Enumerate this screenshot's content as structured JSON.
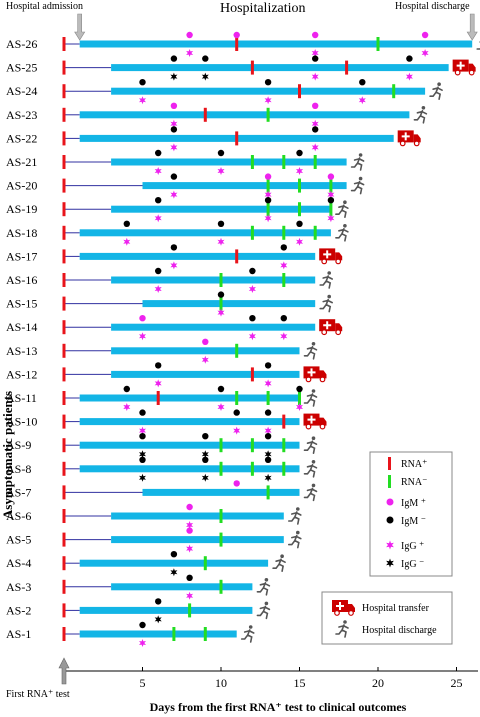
{
  "chart_data": {
    "type": "timeline",
    "xlabel": "Days from the first RNA⁺ test to clinical outcomes",
    "ylabel": "Asymptomatic patients",
    "xlim": [
      0,
      27
    ],
    "x_ticks": [
      5,
      10,
      15,
      20,
      25
    ],
    "annotations": {
      "top_left": "Hospital admission",
      "top_center": "Hospitalization",
      "top_right": "Hospital discharge",
      "bottom_left": "First RNA⁺ test"
    },
    "legend": {
      "placement": "bottom-right",
      "items": [
        {
          "key": "rna_pos",
          "label": "RNA⁺",
          "color": "#e8141b"
        },
        {
          "key": "rna_neg",
          "label": "RNA⁻",
          "color": "#22dd22"
        },
        {
          "key": "igm_pos",
          "label": "IgM ⁺",
          "color": "#ee22ee"
        },
        {
          "key": "igm_neg",
          "label": "IgM ⁻",
          "color": "#000000"
        },
        {
          "key": "igg_pos",
          "label": "IgG ⁺",
          "color": "#ee22ee"
        },
        {
          "key": "igg_neg",
          "label": "IgG ⁻",
          "color": "#000000"
        },
        {
          "key": "transfer",
          "label": "Hospital transfer",
          "color": "#cc0000"
        },
        {
          "key": "discharge",
          "label": "Hospital discharge",
          "color": "#555555"
        }
      ]
    },
    "colors": {
      "hospitalization": "#13b5e6",
      "pre_admission": "#3030a0"
    },
    "patients": [
      {
        "id": "AS-26",
        "admit": 1,
        "end": 26,
        "outcome": "discharge",
        "rna_pos": [
          11
        ],
        "rna_neg": [
          20
        ],
        "igm": [
          [
            8,
            "+"
          ],
          [
            11,
            "+"
          ],
          [
            16,
            "+"
          ],
          [
            23,
            "+"
          ]
        ],
        "igg": [
          [
            8,
            "+"
          ],
          [
            16,
            "+"
          ],
          [
            23,
            "+"
          ]
        ]
      },
      {
        "id": "AS-25",
        "admit": 3,
        "end": 24.5,
        "outcome": "transfer",
        "rna_pos": [
          12,
          18
        ],
        "rna_neg": [],
        "igm": [
          [
            7,
            "-"
          ],
          [
            9,
            "-"
          ],
          [
            16,
            "-"
          ],
          [
            22,
            "-"
          ]
        ],
        "igg": [
          [
            7,
            "-"
          ],
          [
            9,
            "-"
          ],
          [
            16,
            "+"
          ],
          [
            22,
            "+"
          ]
        ]
      },
      {
        "id": "AS-24",
        "admit": 3,
        "end": 23,
        "outcome": "discharge",
        "rna_pos": [
          15
        ],
        "rna_neg": [
          21
        ],
        "igm": [
          [
            5,
            "-"
          ],
          [
            13,
            "-"
          ],
          [
            19,
            "-"
          ]
        ],
        "igg": [
          [
            5,
            "+"
          ],
          [
            13,
            "+"
          ],
          [
            19,
            "+"
          ]
        ]
      },
      {
        "id": "AS-23",
        "admit": 1,
        "end": 22,
        "outcome": "discharge",
        "rna_pos": [
          9
        ],
        "rna_neg": [
          13
        ],
        "igm": [
          [
            7,
            "+"
          ],
          [
            16,
            "+"
          ]
        ],
        "igg": [
          [
            7,
            "+"
          ],
          [
            16,
            "+"
          ]
        ]
      },
      {
        "id": "AS-22",
        "admit": 1,
        "end": 21,
        "outcome": "transfer",
        "rna_pos": [
          11
        ],
        "rna_neg": [],
        "igm": [
          [
            7,
            "-"
          ],
          [
            16,
            "-"
          ]
        ],
        "igg": [
          [
            7,
            "+"
          ],
          [
            16,
            "+"
          ]
        ]
      },
      {
        "id": "AS-21",
        "admit": 3,
        "end": 18,
        "outcome": "discharge",
        "rna_pos": [],
        "rna_neg": [
          12,
          14,
          16
        ],
        "igm": [
          [
            6,
            "-"
          ],
          [
            10,
            "-"
          ],
          [
            15,
            "-"
          ]
        ],
        "igg": [
          [
            6,
            "+"
          ],
          [
            10,
            "+"
          ],
          [
            15,
            "+"
          ]
        ]
      },
      {
        "id": "AS-20",
        "admit": 5,
        "end": 18,
        "outcome": "discharge",
        "rna_pos": [],
        "rna_neg": [
          13,
          15,
          17
        ],
        "igm": [
          [
            7,
            "-"
          ],
          [
            13,
            "+"
          ],
          [
            17,
            "+"
          ]
        ],
        "igg": [
          [
            7,
            "+"
          ],
          [
            13,
            "+"
          ],
          [
            17,
            "+"
          ]
        ]
      },
      {
        "id": "AS-19",
        "admit": 3,
        "end": 17,
        "outcome": "discharge",
        "rna_pos": [],
        "rna_neg": [
          13,
          15,
          17
        ],
        "igm": [
          [
            6,
            "-"
          ],
          [
            13,
            "-"
          ],
          [
            17,
            "-"
          ]
        ],
        "igg": [
          [
            6,
            "+"
          ],
          [
            13,
            "+"
          ],
          [
            17,
            "+"
          ]
        ]
      },
      {
        "id": "AS-18",
        "admit": 1,
        "end": 17,
        "outcome": "discharge",
        "rna_pos": [],
        "rna_neg": [
          12,
          14,
          16
        ],
        "igm": [
          [
            4,
            "-"
          ],
          [
            10,
            "-"
          ],
          [
            15,
            "-"
          ]
        ],
        "igg": [
          [
            4,
            "+"
          ],
          [
            10,
            "+"
          ],
          [
            15,
            "+"
          ]
        ]
      },
      {
        "id": "AS-17",
        "admit": 1,
        "end": 16,
        "outcome": "transfer",
        "rna_pos": [
          11
        ],
        "rna_neg": [],
        "igm": [
          [
            7,
            "-"
          ],
          [
            14,
            "-"
          ]
        ],
        "igg": [
          [
            7,
            "+"
          ],
          [
            14,
            "+"
          ]
        ]
      },
      {
        "id": "AS-16",
        "admit": 3,
        "end": 16,
        "outcome": "discharge",
        "rna_pos": [],
        "rna_neg": [
          10,
          14
        ],
        "igm": [
          [
            6,
            "-"
          ],
          [
            12,
            "-"
          ]
        ],
        "igg": [
          [
            6,
            "+"
          ],
          [
            12,
            "+"
          ]
        ]
      },
      {
        "id": "AS-15",
        "admit": 5,
        "end": 16,
        "outcome": "discharge",
        "rna_pos": [],
        "rna_neg": [
          10
        ],
        "igm": [
          [
            10,
            "-"
          ]
        ],
        "igg": [
          [
            10,
            "+"
          ]
        ]
      },
      {
        "id": "AS-14",
        "admit": 3,
        "end": 16,
        "outcome": "transfer",
        "rna_pos": [],
        "rna_neg": [],
        "igm": [
          [
            5,
            "+"
          ],
          [
            12,
            "-"
          ],
          [
            14,
            "-"
          ]
        ],
        "igg": [
          [
            5,
            "+"
          ],
          [
            12,
            "+"
          ],
          [
            14,
            "+"
          ]
        ]
      },
      {
        "id": "AS-13",
        "admit": 3,
        "end": 15,
        "outcome": "discharge",
        "rna_pos": [],
        "rna_neg": [
          11
        ],
        "igm": [
          [
            9,
            "+"
          ]
        ],
        "igg": [
          [
            9,
            "+"
          ]
        ]
      },
      {
        "id": "AS-12",
        "admit": 3,
        "end": 15,
        "outcome": "transfer",
        "rna_pos": [
          12
        ],
        "rna_neg": [],
        "igm": [
          [
            6,
            "-"
          ],
          [
            13,
            "-"
          ]
        ],
        "igg": [
          [
            6,
            "+"
          ],
          [
            13,
            "+"
          ]
        ]
      },
      {
        "id": "AS-11",
        "admit": 1,
        "end": 15,
        "outcome": "discharge",
        "rna_pos": [
          6
        ],
        "rna_neg": [
          11,
          13,
          15
        ],
        "igm": [
          [
            4,
            "-"
          ],
          [
            10,
            "-"
          ],
          [
            15,
            "-"
          ]
        ],
        "igg": [
          [
            4,
            "+"
          ],
          [
            10,
            "+"
          ],
          [
            15,
            "+"
          ]
        ]
      },
      {
        "id": "AS-10",
        "admit": 1,
        "end": 15,
        "outcome": "transfer",
        "rna_pos": [
          14
        ],
        "rna_neg": [],
        "igm": [
          [
            5,
            "-"
          ],
          [
            11,
            "-"
          ],
          [
            13,
            "-"
          ]
        ],
        "igg": [
          [
            5,
            "+"
          ],
          [
            11,
            "+"
          ],
          [
            13,
            "+"
          ]
        ]
      },
      {
        "id": "AS-9",
        "admit": 1,
        "end": 15,
        "outcome": "discharge",
        "rna_pos": [],
        "rna_neg": [
          10,
          12,
          14
        ],
        "igm": [
          [
            5,
            "-"
          ],
          [
            9,
            "-"
          ],
          [
            13,
            "-"
          ]
        ],
        "igg": [
          [
            5,
            "-"
          ],
          [
            9,
            "-"
          ],
          [
            13,
            "-"
          ]
        ]
      },
      {
        "id": "AS-8",
        "admit": 1,
        "end": 15,
        "outcome": "discharge",
        "rna_pos": [],
        "rna_neg": [
          10,
          12,
          14
        ],
        "igm": [
          [
            5,
            "-"
          ],
          [
            9,
            "-"
          ],
          [
            13,
            "-"
          ]
        ],
        "igg": [
          [
            5,
            "-"
          ],
          [
            9,
            "-"
          ],
          [
            13,
            "-"
          ]
        ]
      },
      {
        "id": "AS-7",
        "admit": 5,
        "end": 15,
        "outcome": "discharge",
        "rna_pos": [],
        "rna_neg": [
          13
        ],
        "igm": [
          [
            11,
            "+"
          ]
        ],
        "igg": []
      },
      {
        "id": "AS-6",
        "admit": 3,
        "end": 14,
        "outcome": "discharge",
        "rna_pos": [],
        "rna_neg": [
          10
        ],
        "igm": [
          [
            8,
            "+"
          ]
        ],
        "igg": [
          [
            8,
            "+"
          ]
        ]
      },
      {
        "id": "AS-5",
        "admit": 3,
        "end": 14,
        "outcome": "discharge",
        "rna_pos": [],
        "rna_neg": [
          10
        ],
        "igm": [
          [
            8,
            "+"
          ]
        ],
        "igg": [
          [
            8,
            "+"
          ]
        ]
      },
      {
        "id": "AS-4",
        "admit": 1,
        "end": 13,
        "outcome": "discharge",
        "rna_pos": [],
        "rna_neg": [
          9
        ],
        "igm": [
          [
            7,
            "-"
          ]
        ],
        "igg": [
          [
            7,
            "-"
          ]
        ]
      },
      {
        "id": "AS-3",
        "admit": 3,
        "end": 12,
        "outcome": "discharge",
        "rna_pos": [],
        "rna_neg": [
          10
        ],
        "igm": [
          [
            8,
            "-"
          ]
        ],
        "igg": [
          [
            8,
            "+"
          ]
        ]
      },
      {
        "id": "AS-2",
        "admit": 1,
        "end": 12,
        "outcome": "discharge",
        "rna_pos": [],
        "rna_neg": [
          8
        ],
        "igm": [
          [
            6,
            "-"
          ]
        ],
        "igg": [
          [
            6,
            "-"
          ]
        ]
      },
      {
        "id": "AS-1",
        "admit": 1,
        "end": 11,
        "outcome": "discharge",
        "rna_pos": [],
        "rna_neg": [
          7,
          9
        ],
        "igm": [
          [
            5,
            "-"
          ]
        ],
        "igg": [
          [
            5,
            "+"
          ]
        ]
      }
    ]
  }
}
